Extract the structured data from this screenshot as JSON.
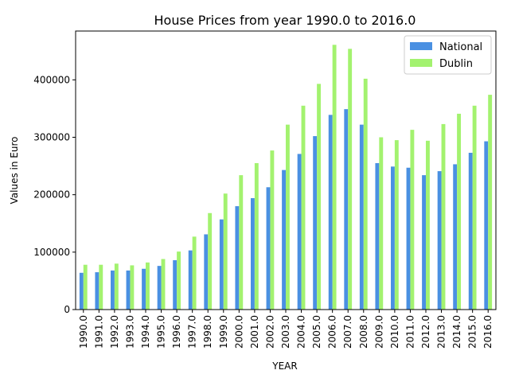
{
  "chart_data": {
    "type": "bar",
    "title": "House Prices from year 1990.0 to 2016.0",
    "xlabel": "YEAR",
    "ylabel": "Values in Euro",
    "ylim": [
      0,
      485000
    ],
    "yticks": [
      0,
      100000,
      200000,
      300000,
      400000
    ],
    "ytick_labels": [
      "0",
      "100000",
      "200000",
      "300000",
      "400000"
    ],
    "grid": false,
    "legend_position": "top-right",
    "categories": [
      "1990.0",
      "1991.0",
      "1992.0",
      "1993.0",
      "1994.0",
      "1995.0",
      "1996.0",
      "1997.0",
      "1998.0",
      "1999.0",
      "2000.0",
      "2001.0",
      "2002.0",
      "2003.0",
      "2004.0",
      "2005.0",
      "2006.0",
      "2007.0",
      "2008.0",
      "2009.0",
      "2010.0",
      "2011.0",
      "2012.0",
      "2013.0",
      "2014.0",
      "2015.0",
      "2016.0"
    ],
    "series": [
      {
        "name": "National",
        "color": "#4a90e2",
        "values": [
          64000,
          65000,
          68000,
          68000,
          71000,
          76000,
          86000,
          103000,
          131000,
          157000,
          180000,
          194000,
          213000,
          243000,
          271000,
          302000,
          339000,
          349000,
          322000,
          255000,
          249000,
          247000,
          234000,
          241000,
          253000,
          273000,
          293000
        ]
      },
      {
        "name": "Dublin",
        "color": "#a3f26f",
        "values": [
          78000,
          78000,
          80000,
          77000,
          82000,
          88000,
          101000,
          127000,
          168000,
          202000,
          234000,
          255000,
          277000,
          322000,
          355000,
          393000,
          461000,
          454000,
          402000,
          300000,
          295000,
          313000,
          294000,
          323000,
          341000,
          355000,
          374000
        ]
      }
    ]
  }
}
